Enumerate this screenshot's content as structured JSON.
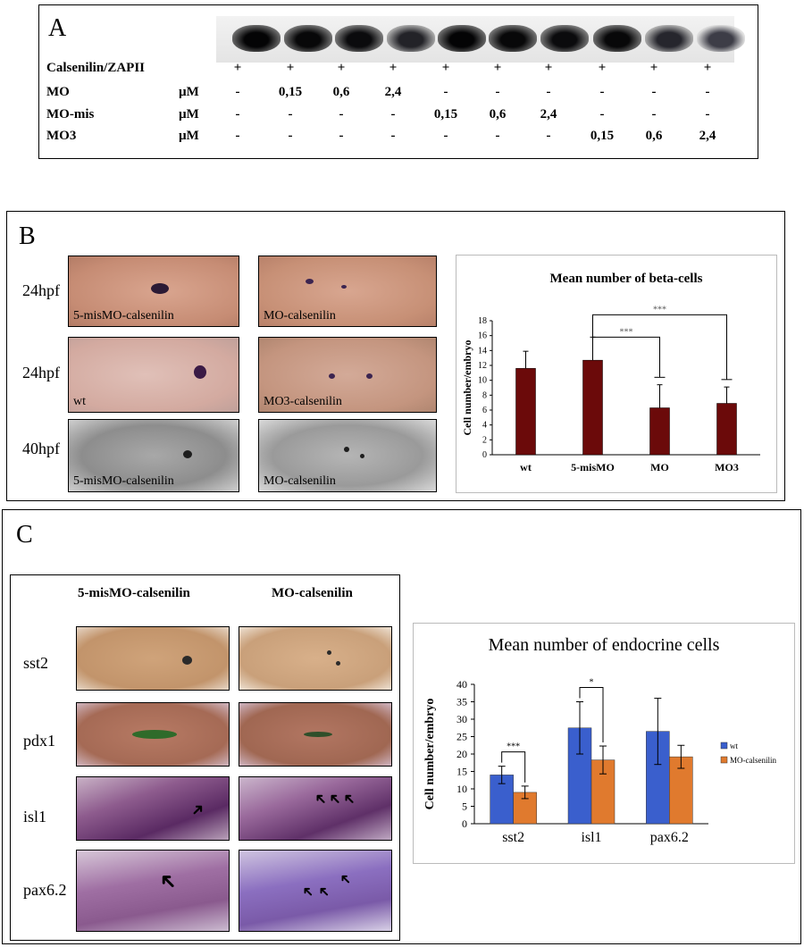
{
  "panelA": {
    "label": "A",
    "rows": [
      {
        "name": "Calsenilin/ZAPII",
        "unit": "",
        "values": [
          "+",
          "+",
          "+",
          "+",
          "+",
          "+",
          "+",
          "+",
          "+",
          "+"
        ]
      },
      {
        "name": "MO",
        "unit": "µM",
        "values": [
          "-",
          "0,15",
          "0,6",
          "2,4",
          "-",
          "-",
          "-",
          "-",
          "-",
          "-"
        ]
      },
      {
        "name": "MO-mis",
        "unit": "µM",
        "values": [
          "-",
          "-",
          "-",
          "-",
          "0,15",
          "0,6",
          "2,4",
          "-",
          "-",
          "-"
        ]
      },
      {
        "name": "MO3",
        "unit": "µM",
        "values": [
          "-",
          "-",
          "-",
          "-",
          "-",
          "-",
          "-",
          "0,15",
          "0,6",
          "2,4"
        ]
      }
    ],
    "blot_intensity": [
      0.95,
      0.9,
      0.85,
      0.55,
      0.95,
      0.9,
      0.85,
      0.9,
      0.5,
      0.2
    ]
  },
  "panelB": {
    "label": "B",
    "row_labels": [
      "24hpf",
      "24hpf",
      "40hpf"
    ],
    "images": [
      {
        "caption": "5-misMO-calsenilin"
      },
      {
        "caption": "MO-calsenilin"
      },
      {
        "caption": "wt"
      },
      {
        "caption": "MO3-calsenilin"
      },
      {
        "caption": "5-misMO-calsenilin"
      },
      {
        "caption": "MO-calsenilin"
      }
    ]
  },
  "panelC": {
    "label": "C",
    "column_headers": [
      "5-misMO-calsenilin",
      "MO-calsenilin"
    ],
    "row_labels": [
      "sst2",
      "pdx1",
      "isl1",
      "pax6.2"
    ]
  },
  "chart_data": [
    {
      "type": "bar",
      "title": "Mean number of beta-cells",
      "ylabel": "Cell number/embryo",
      "xlabel": "",
      "categories": [
        "wt",
        "5-misMO",
        "MO",
        "MO3"
      ],
      "values": [
        11.6,
        12.7,
        6.3,
        6.9
      ],
      "errors": [
        2.3,
        3.1,
        3.1,
        2.2
      ],
      "ylim": [
        0,
        18
      ],
      "yticks": [
        0,
        2,
        4,
        6,
        8,
        10,
        12,
        14,
        16,
        18
      ],
      "bar_color": "#6b0a0a",
      "significance": [
        {
          "from": "5-misMO",
          "to": "MO",
          "label": "***"
        },
        {
          "from": "5-misMO",
          "to": "MO3",
          "label": "***"
        }
      ]
    },
    {
      "type": "bar",
      "title": "Mean number of endocrine cells",
      "ylabel": "Cell number/embryo",
      "xlabel": "",
      "categories": [
        "sst2",
        "isl1",
        "pax6.2"
      ],
      "series": [
        {
          "name": "wt",
          "color": "#3a5fcd",
          "values": [
            14,
            27.5,
            26.5
          ],
          "errors": [
            2.5,
            7.5,
            9.5
          ]
        },
        {
          "name": "MO-calsenilin",
          "color": "#e07a2e",
          "values": [
            9,
            18.3,
            19.2
          ],
          "errors": [
            1.8,
            4,
            3.3
          ]
        }
      ],
      "ylim": [
        0,
        40
      ],
      "yticks": [
        0,
        5,
        10,
        15,
        20,
        25,
        30,
        35,
        40
      ],
      "legend": "right",
      "significance": [
        {
          "category": "sst2",
          "label": "***"
        },
        {
          "category": "isl1",
          "label": "*"
        }
      ]
    }
  ]
}
